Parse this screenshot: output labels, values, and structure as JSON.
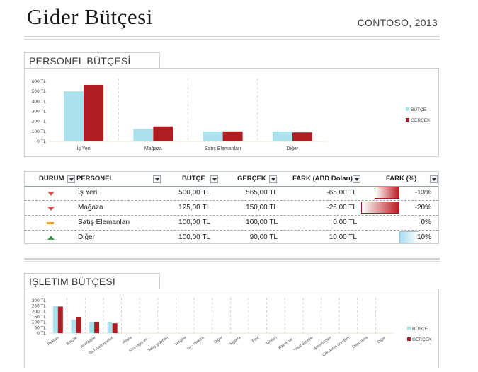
{
  "header": {
    "title": "Gider Bütçesi",
    "company": "CONTOSO, 2013"
  },
  "colors": {
    "butce": "#a9e2ec",
    "gercek": "#b01c22"
  },
  "personnel_section": {
    "title": "PERSONEL BÜTÇESİ"
  },
  "operating_section": {
    "title": "İŞLETİM BÜTÇESİ"
  },
  "chart_data": [
    {
      "type": "bar",
      "categories": [
        "İş Yeri",
        "Mağaza",
        "Satış Elemanları",
        "Diğer"
      ],
      "series": [
        {
          "name": "BÜTÇE",
          "values": [
            500,
            125,
            100,
            100
          ]
        },
        {
          "name": "GERÇEK",
          "values": [
            565,
            150,
            100,
            90
          ]
        }
      ],
      "yticks": [
        "600 TL",
        "500 TL",
        "400 TL",
        "300 TL",
        "200 TL",
        "100 TL",
        "0 TL"
      ],
      "ylim": [
        0,
        600
      ],
      "legend": "right"
    },
    {
      "type": "bar",
      "categories": [
        "Reklam",
        "Borçlar",
        "Avantajlar",
        "Sarf malzemeleri",
        "Posta",
        "Kira veya ev...",
        "Satış giderleri",
        "Vergiler",
        "Su - elektrik",
        "Diğer",
        "Sigorta",
        "Faiz",
        "Telefon",
        "Bakım ve...",
        "Yasal ücretler",
        "Amortisman",
        "Gönderim ücretleri",
        "Depolama",
        "Diğer"
      ],
      "series": [
        {
          "name": "BÜTÇE",
          "values": [
            250,
            125,
            100,
            100,
            0,
            0,
            0,
            0,
            0,
            0,
            0,
            0,
            0,
            0,
            0,
            0,
            0,
            0,
            0
          ]
        },
        {
          "name": "GERÇEK",
          "values": [
            245,
            150,
            100,
            90,
            0,
            0,
            0,
            0,
            0,
            0,
            0,
            0,
            0,
            0,
            0,
            0,
            0,
            0,
            0
          ]
        }
      ],
      "yticks": [
        "300 TL",
        "250 TL",
        "200 TL",
        "150 TL",
        "100 TL",
        "50 TL",
        "0 TL"
      ],
      "ylim": [
        0,
        300
      ],
      "legend": "right"
    }
  ],
  "table": {
    "headers": {
      "durum": "DURUM",
      "personel": "PERSONEL",
      "butce": "BÜTÇE",
      "gercek": "GERÇEK",
      "fark": "FARK (ABD Doları)",
      "fark_pct": "FARK (%)"
    },
    "rows": [
      {
        "status": "down",
        "name": "İş Yeri",
        "butce": "500,00 TL",
        "gercek": "565,00 TL",
        "fark": "-65,00 TL",
        "pct": "-13%",
        "pct_value": -13
      },
      {
        "status": "down",
        "name": "Mağaza",
        "butce": "125,00 TL",
        "gercek": "150,00 TL",
        "fark": "-25,00 TL",
        "pct": "-20%",
        "pct_value": -20
      },
      {
        "status": "flat",
        "name": "Satış Elemanları",
        "butce": "100,00 TL",
        "gercek": "100,00 TL",
        "fark": "0,00 TL",
        "pct": "0%",
        "pct_value": 0
      },
      {
        "status": "up",
        "name": "Diğer",
        "butce": "100,00 TL",
        "gercek": "90,00 TL",
        "fark": "10,00 TL",
        "pct": "10%",
        "pct_value": 10
      }
    ]
  }
}
